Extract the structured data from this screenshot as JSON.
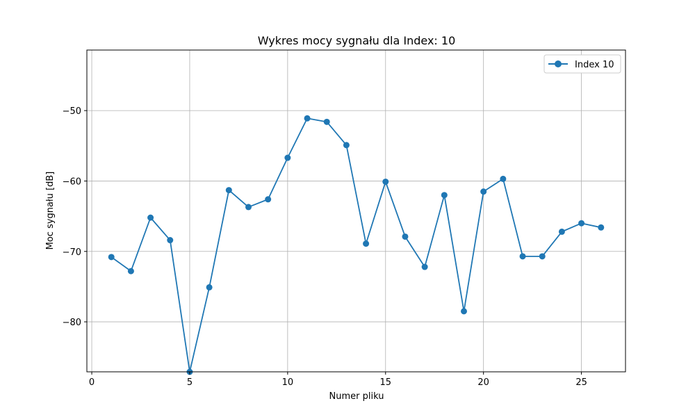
{
  "chart_data": {
    "type": "line",
    "title": "Wykres mocy sygnału dla Index: 10",
    "xlabel": "Numer pliku",
    "ylabel": "Moc sygnału [dB]",
    "xlim": [
      -0.25,
      27.25
    ],
    "ylim": [
      -87.1,
      -41.4
    ],
    "xticks": [
      0,
      5,
      10,
      15,
      20,
      25
    ],
    "yticks": [
      -80,
      -70,
      -60,
      -50
    ],
    "xtick_labels": [
      "0",
      "5",
      "10",
      "15",
      "20",
      "25"
    ],
    "ytick_labels": [
      "−80",
      "−70",
      "−60",
      "−50"
    ],
    "grid": true,
    "legend_position": "top-right",
    "series": [
      {
        "name": "Index 10",
        "color": "#1f77b4",
        "marker": "circle",
        "x": [
          1,
          2,
          3,
          4,
          5,
          6,
          7,
          8,
          9,
          10,
          11,
          12,
          13,
          14,
          15,
          16,
          17,
          18,
          19,
          20,
          21,
          22,
          23,
          24,
          25,
          26
        ],
        "y": [
          -70.8,
          -72.8,
          -65.2,
          -68.4,
          -87.1,
          -75.1,
          -61.3,
          -63.7,
          -62.6,
          -56.7,
          -51.1,
          -51.6,
          -54.9,
          -68.9,
          -60.1,
          -67.9,
          -72.2,
          -62.0,
          -78.5,
          -61.5,
          -59.7,
          -70.7,
          -70.7,
          -67.2,
          -66.0,
          -66.6
        ]
      }
    ]
  }
}
